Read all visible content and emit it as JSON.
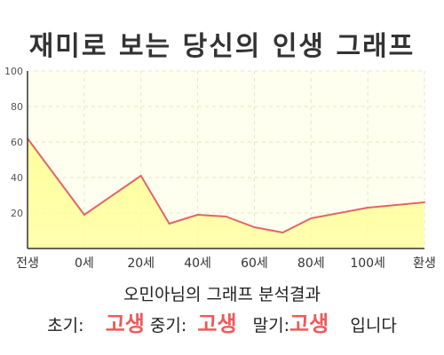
{
  "title": "재미로 보는 당신의 인생 그래프",
  "colors": {
    "line": "#e06666",
    "fill": "#ffff99",
    "plot_bg": "#fffff0",
    "highlight": "#ee5a5a"
  },
  "chart_data": {
    "type": "area",
    "x": [
      -20,
      0,
      20,
      30,
      40,
      50,
      60,
      70,
      80,
      100,
      120
    ],
    "y": [
      62,
      19,
      41,
      14,
      19,
      18,
      12,
      9,
      17,
      23,
      26
    ],
    "xticks": [
      {
        "value": -20,
        "label": "전생"
      },
      {
        "value": 0,
        "label": "0세"
      },
      {
        "value": 20,
        "label": "20세"
      },
      {
        "value": 40,
        "label": "40세"
      },
      {
        "value": 60,
        "label": "60세"
      },
      {
        "value": 80,
        "label": "80세"
      },
      {
        "value": 100,
        "label": "100세"
      },
      {
        "value": 120,
        "label": "환생"
      }
    ],
    "yticks": [
      20,
      40,
      60,
      80,
      100
    ],
    "ylim": [
      0,
      100
    ],
    "xlim": [
      -20,
      120
    ],
    "grid": true
  },
  "result": {
    "heading": "오민아님의 그래프 분석결과",
    "early_label": "초기:",
    "early_value": "고생",
    "mid_label": "중기:",
    "mid_value": "고생",
    "late_label": "말기:",
    "late_value": "고생",
    "suffix": "입니다"
  }
}
